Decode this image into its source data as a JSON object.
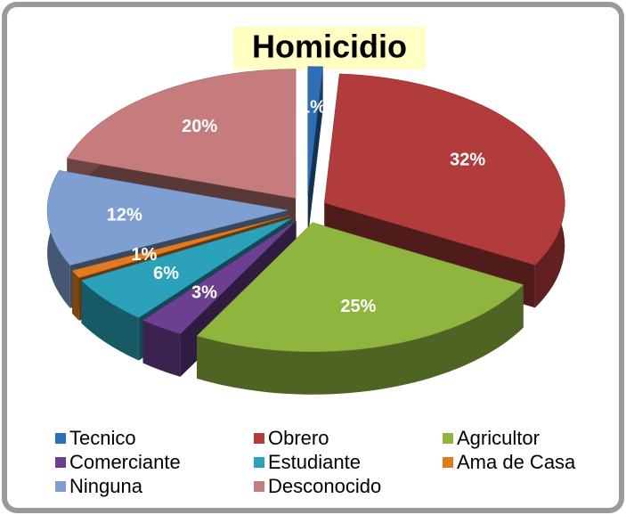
{
  "chart_data": {
    "type": "pie",
    "title": "Homicidio",
    "categories": [
      "Tecnico",
      "Obrero",
      "Agricultor",
      "Comerciante",
      "Estudiante",
      "Ama de Casa",
      "Ninguna",
      "Desconocido"
    ],
    "values": [
      1,
      32,
      25,
      3,
      6,
      1,
      12,
      20
    ],
    "value_labels": [
      "1%",
      "32%",
      "25%",
      "3%",
      "6%",
      "1%",
      "12%",
      "20%"
    ],
    "colors": [
      "#2f6db5",
      "#b23b3b",
      "#8fb53f",
      "#6c3f91",
      "#2ba1ba",
      "#e27b1f",
      "#7f9fd3",
      "#c67c7c"
    ],
    "legend": "bottom"
  }
}
